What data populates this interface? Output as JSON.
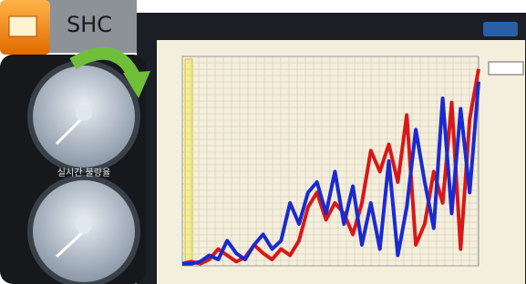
{
  "app_tab": {
    "label": "SHC"
  },
  "gauge_panel": {
    "label": "실시간 불량율"
  },
  "chart_data": {
    "type": "line",
    "grid": true,
    "ylim": [
      0,
      100
    ],
    "series": [
      {
        "name": null,
        "color": "#d81818",
        "values": [
          1,
          2,
          1,
          3,
          8,
          5,
          2,
          4,
          10,
          6,
          3,
          8,
          5,
          12,
          28,
          35,
          22,
          30,
          25,
          15,
          30,
          55,
          45,
          58,
          40,
          72,
          10,
          20,
          45,
          30,
          78,
          8,
          70,
          94
        ]
      },
      {
        "name": null,
        "color": "#1a2ad0",
        "values": [
          1,
          1,
          2,
          5,
          3,
          12,
          6,
          3,
          10,
          15,
          8,
          12,
          30,
          20,
          35,
          40,
          25,
          45,
          20,
          38,
          10,
          30,
          8,
          50,
          5,
          28,
          65,
          40,
          18,
          80,
          25,
          75,
          35,
          88
        ]
      }
    ]
  }
}
